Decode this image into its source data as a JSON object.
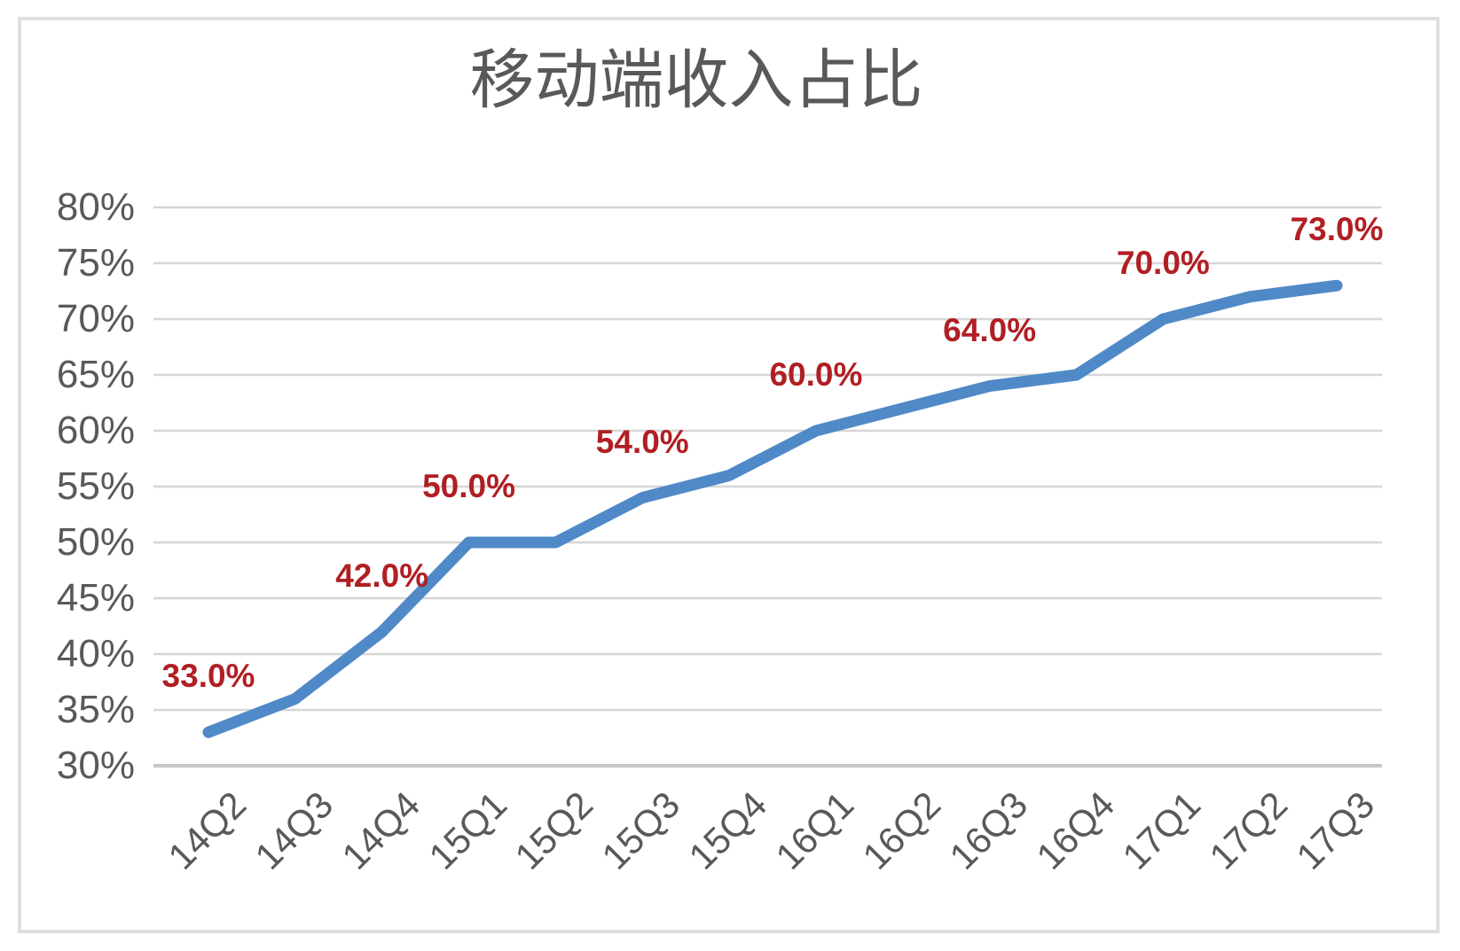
{
  "chart_data": {
    "type": "line",
    "title": "移动端收入占比",
    "categories": [
      "14Q2",
      "14Q3",
      "14Q4",
      "15Q1",
      "15Q2",
      "15Q3",
      "15Q4",
      "16Q1",
      "16Q2",
      "16Q3",
      "16Q4",
      "17Q1",
      "17Q2",
      "17Q3"
    ],
    "series": [
      {
        "values": [
          33,
          36,
          42,
          50,
          50,
          54,
          56,
          60,
          62,
          64,
          65,
          70,
          72,
          73
        ]
      }
    ],
    "data_labels": [
      {
        "index": 0,
        "text": "33.0%"
      },
      {
        "index": 2,
        "text": "42.0%"
      },
      {
        "index": 3,
        "text": "50.0%"
      },
      {
        "index": 5,
        "text": "54.0%"
      },
      {
        "index": 7,
        "text": "60.0%"
      },
      {
        "index": 9,
        "text": "64.0%"
      },
      {
        "index": 11,
        "text": "70.0%"
      },
      {
        "index": 13,
        "text": "73.0%"
      }
    ],
    "y_ticks": [
      "80%",
      "75%",
      "70%",
      "65%",
      "60%",
      "55%",
      "50%",
      "45%",
      "40%",
      "35%",
      "30%"
    ],
    "ylim": [
      30,
      80
    ],
    "y_step": 5,
    "grid": true,
    "legend": "none",
    "colors": {
      "line": "#5089C7",
      "data_label": "#B01F24",
      "axis_text": "#595959",
      "title_text": "#595959",
      "gridline": "#D6D6D6",
      "axis_line": "#C6C6C6",
      "frame_border": "#DFDFDF",
      "background": "#FFFFFF"
    }
  }
}
